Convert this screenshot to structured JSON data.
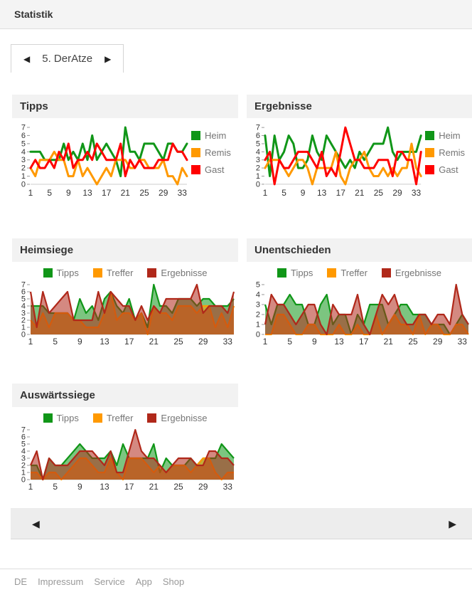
{
  "header": {
    "title": "Statistik"
  },
  "team_tab": {
    "prev_icon": "◀",
    "label": "5. DerAtze",
    "next_icon": "▶"
  },
  "pager": {
    "prev_icon": "◀",
    "next_icon": "▶"
  },
  "footer": {
    "links": [
      "DE",
      "Impressum",
      "Service",
      "App",
      "Shop"
    ]
  },
  "colors": {
    "green": "#109618",
    "orange": "#ff9900",
    "red": "#ff0000",
    "dark_red": "#b0281a"
  },
  "chart_data": [
    {
      "id": "tipps",
      "title": "Tipps",
      "type": "line",
      "legend_position": "right",
      "x_ticks": [
        1,
        5,
        9,
        13,
        17,
        21,
        25,
        29,
        33
      ],
      "x_count": 34,
      "ylim": [
        0,
        7
      ],
      "series": [
        {
          "name": "Heim",
          "color": "#109618",
          "values": [
            4,
            4,
            4,
            3,
            3,
            3,
            3,
            5,
            3,
            4,
            3,
            5,
            3,
            6,
            3,
            4,
            5,
            4,
            3,
            1,
            7,
            4,
            4,
            3,
            5,
            5,
            5,
            4,
            3,
            5,
            5,
            4,
            4,
            5
          ]
        },
        {
          "name": "Remis",
          "color": "#ff9900",
          "values": [
            2,
            1,
            3,
            3,
            3,
            4,
            3,
            3,
            1,
            1,
            3,
            1,
            2,
            1,
            0,
            1,
            2,
            1,
            3,
            3,
            3,
            2,
            2,
            3,
            3,
            2,
            2,
            2,
            3,
            1,
            1,
            0,
            2,
            1
          ]
        },
        {
          "name": "Gast",
          "color": "#ff0000",
          "values": [
            2,
            3,
            2,
            2,
            3,
            2,
            4,
            3,
            5,
            2,
            3,
            3,
            4,
            3,
            5,
            4,
            3,
            3,
            3,
            5,
            1,
            3,
            2,
            3,
            2,
            2,
            2,
            3,
            3,
            3,
            5,
            4,
            4,
            3
          ]
        }
      ]
    },
    {
      "id": "ergebnisse",
      "title": "Ergebnisse",
      "type": "line",
      "legend_position": "right",
      "x_ticks": [
        1,
        5,
        9,
        13,
        17,
        21,
        25,
        29,
        33
      ],
      "x_count": 34,
      "ylim": [
        0,
        7
      ],
      "series": [
        {
          "name": "Heim",
          "color": "#109618",
          "values": [
            6,
            1,
            6,
            3,
            4,
            6,
            5,
            2,
            2,
            3,
            6,
            4,
            3,
            6,
            5,
            4,
            3,
            2,
            3,
            2,
            4,
            3,
            4,
            5,
            5,
            5,
            7,
            4,
            3,
            4,
            4,
            4,
            4,
            6
          ]
        },
        {
          "name": "Remis",
          "color": "#ff9900",
          "values": [
            2,
            3,
            3,
            3,
            2,
            1,
            2,
            3,
            3,
            2,
            0,
            2,
            2,
            2,
            2,
            4,
            1,
            0,
            2,
            3,
            3,
            4,
            2,
            1,
            1,
            2,
            1,
            2,
            1,
            2,
            2,
            5,
            2,
            1
          ]
        },
        {
          "name": "Gast",
          "color": "#ff0000",
          "values": [
            3,
            4,
            0,
            3,
            2,
            2,
            3,
            4,
            4,
            4,
            3,
            2,
            4,
            1,
            2,
            1,
            4,
            7,
            5,
            3,
            3,
            2,
            2,
            2,
            3,
            3,
            3,
            1,
            4,
            4,
            3,
            3,
            0,
            4
          ]
        }
      ]
    },
    {
      "id": "heimsiege",
      "title": "Heimsiege",
      "type": "area",
      "legend_position": "top",
      "x_ticks": [
        1,
        5,
        9,
        13,
        17,
        21,
        25,
        29,
        33
      ],
      "x_count": 34,
      "ylim": [
        0,
        7
      ],
      "series": [
        {
          "name": "Tipps",
          "color": "#109618",
          "values": [
            4,
            4,
            4,
            3,
            3,
            3,
            3,
            2,
            5,
            3,
            4,
            2,
            5,
            6,
            4,
            3,
            5,
            2,
            3,
            1,
            7,
            4,
            4,
            3,
            5,
            5,
            5,
            4,
            5,
            5,
            4,
            4,
            4,
            5
          ]
        },
        {
          "name": "Treffer",
          "color": "#ff9900",
          "values": [
            2,
            1,
            3,
            1,
            3,
            3,
            3,
            2,
            2,
            1,
            1,
            1,
            3,
            6,
            2,
            3,
            3,
            2,
            3,
            0,
            4,
            3,
            3,
            2,
            4,
            4,
            4,
            3,
            4,
            4,
            1,
            3,
            1,
            4
          ]
        },
        {
          "name": "Ergebnisse",
          "color": "#b0281a",
          "values": [
            6,
            1,
            6,
            3,
            4,
            5,
            6,
            2,
            2,
            2,
            2,
            6,
            3,
            6,
            5,
            4,
            4,
            2,
            4,
            2,
            4,
            3,
            5,
            5,
            5,
            5,
            5,
            7,
            3,
            4,
            4,
            4,
            3,
            6
          ]
        }
      ]
    },
    {
      "id": "unentschieden",
      "title": "Unentschieden",
      "type": "area",
      "legend_position": "top",
      "x_ticks": [
        1,
        5,
        9,
        13,
        17,
        21,
        25,
        29,
        33
      ],
      "x_count": 34,
      "ylim": [
        0,
        5
      ],
      "series": [
        {
          "name": "Tipps",
          "color": "#109618",
          "values": [
            3,
            1,
            3,
            3,
            4,
            3,
            3,
            1,
            1,
            3,
            4,
            1,
            2,
            2,
            0,
            2,
            1,
            3,
            3,
            3,
            1,
            2,
            3,
            3,
            2,
            2,
            2,
            1,
            1,
            1,
            0,
            1,
            2,
            1
          ]
        },
        {
          "name": "Treffer",
          "color": "#ff9900",
          "values": [
            0,
            0,
            2,
            2,
            1,
            0,
            0,
            1,
            1,
            0,
            0,
            0,
            1,
            0,
            0,
            1,
            0,
            0,
            2,
            0,
            1,
            2,
            1,
            1,
            0,
            2,
            0,
            1,
            1,
            0,
            0,
            1,
            1,
            0
          ]
        },
        {
          "name": "Ergebnisse",
          "color": "#b0281a",
          "values": [
            1,
            4,
            3,
            3,
            2,
            1,
            2,
            3,
            3,
            1,
            0,
            3,
            2,
            2,
            2,
            4,
            1,
            0,
            2,
            4,
            3,
            4,
            2,
            1,
            1,
            2,
            2,
            1,
            2,
            2,
            1,
            5,
            2,
            1
          ]
        }
      ]
    },
    {
      "id": "auswaertssiege",
      "title": "Auswärtssiege",
      "type": "area",
      "legend_position": "top",
      "x_ticks": [
        1,
        5,
        9,
        13,
        17,
        21,
        25,
        29,
        33
      ],
      "x_count": 34,
      "ylim": [
        0,
        7
      ],
      "series": [
        {
          "name": "Tipps",
          "color": "#109618",
          "values": [
            2,
            2,
            0,
            3,
            2,
            2,
            3,
            4,
            5,
            4,
            3,
            3,
            3,
            4,
            2,
            5,
            3,
            3,
            3,
            3,
            5,
            1,
            3,
            2,
            2,
            2,
            3,
            2,
            3,
            3,
            3,
            5,
            4,
            3
          ]
        },
        {
          "name": "Treffer",
          "color": "#ff9900",
          "values": [
            1,
            1,
            0,
            1,
            1,
            0,
            1,
            2,
            3,
            3,
            2,
            1,
            1,
            3,
            1,
            0,
            3,
            3,
            3,
            2,
            1,
            2,
            1,
            2,
            2,
            2,
            1,
            2,
            3,
            3,
            1,
            0,
            1,
            1
          ]
        },
        {
          "name": "Ergebnisse",
          "color": "#b0281a",
          "values": [
            2,
            4,
            0,
            3,
            2,
            2,
            2,
            3,
            4,
            4,
            4,
            3,
            2,
            4,
            1,
            1,
            4,
            7,
            4,
            3,
            3,
            2,
            1,
            2,
            3,
            3,
            3,
            2,
            2,
            4,
            4,
            3,
            3,
            2
          ]
        }
      ]
    }
  ]
}
